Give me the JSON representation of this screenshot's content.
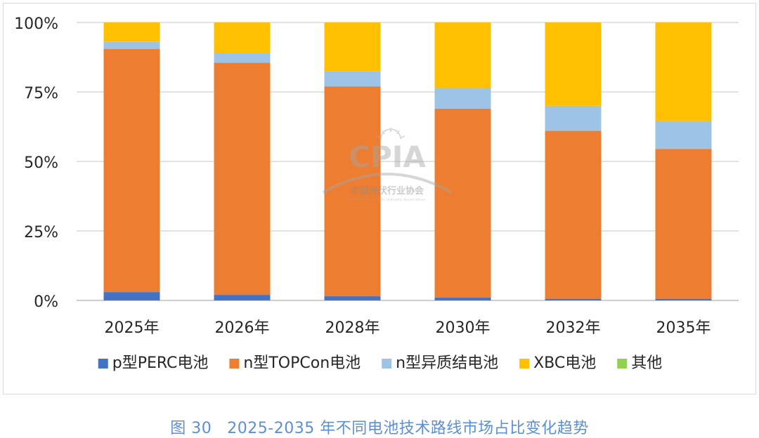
{
  "chart_data": {
    "type": "bar",
    "stacked": true,
    "normalized": true,
    "categories": [
      "2025年",
      "2026年",
      "2028年",
      "2030年",
      "2032年",
      "2035年"
    ],
    "series": [
      {
        "name": "p型PERC电池",
        "color": "#4472c4",
        "values": [
          3,
          2,
          1.5,
          1,
          0.5,
          0.5
        ]
      },
      {
        "name": "n型TOPCon电池",
        "color": "#ed7d31",
        "values": [
          87.5,
          83.5,
          75.5,
          68,
          60.5,
          54
        ]
      },
      {
        "name": "n型异质结电池",
        "color": "#9dc3e6",
        "values": [
          2.5,
          3.5,
          5.5,
          7.5,
          9,
          10
        ]
      },
      {
        "name": "XBC电池",
        "color": "#ffc000",
        "values": [
          7,
          11,
          17.5,
          23.5,
          30,
          35.5
        ]
      },
      {
        "name": "其他",
        "color": "#92d050",
        "values": [
          0,
          0,
          0,
          0,
          0,
          0
        ]
      }
    ],
    "ylim": [
      0,
      100
    ],
    "yticks": [
      "0%",
      "25%",
      "50%",
      "75%",
      "100%"
    ],
    "ytick_values": [
      0,
      25,
      50,
      75,
      100
    ],
    "grid": true,
    "legend_position": "bottom"
  },
  "caption": {
    "figure_no": "图 30",
    "text": "2025-2035 年不同电池技术路线市场占比变化趋势"
  },
  "watermark": {
    "logo_text": "CPIA",
    "cn_name": "中国光伏行业协会",
    "en_name": "China Photovoltaic Industry Association"
  }
}
